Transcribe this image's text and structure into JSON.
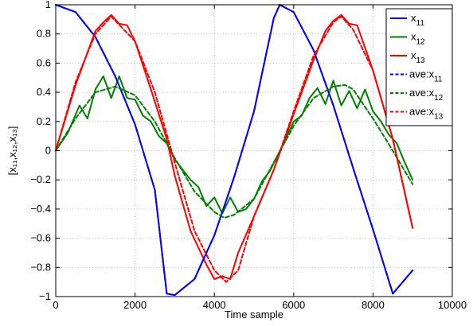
{
  "chart_data": {
    "type": "line",
    "xlabel": "Time sample",
    "ylabel": "[x₁₁,x₁₂,x₁₃]",
    "xlim": [
      0,
      10000
    ],
    "ylim": [
      -1,
      1
    ],
    "xticks": [
      0,
      2000,
      4000,
      6000,
      8000,
      10000
    ],
    "xtick_labels": [
      "0",
      "2000",
      "4000",
      "6000",
      "8000",
      "10000"
    ],
    "yticks": [
      -1,
      -0.8,
      -0.6,
      -0.4,
      -0.2,
      0,
      0.2,
      0.4,
      0.6,
      0.8,
      1
    ],
    "ytick_labels": [
      "−1",
      "−0.8",
      "−0.6",
      "−0.4",
      "−0.2",
      "0",
      "0.2",
      "0.4",
      "0.6",
      "0.8",
      "1"
    ],
    "grid": true,
    "legend_position": "top-right",
    "series": [
      {
        "name": "x11",
        "label_base": "x",
        "label_sub": "11",
        "color": "#0000ff",
        "style": "solid",
        "x": [
          0,
          500,
          1000,
          1500,
          2000,
          2500,
          2800,
          3000,
          3500,
          4000,
          4500,
          5000,
          5500,
          5650,
          6000,
          6500,
          7000,
          7500,
          8000,
          8500,
          9000
        ],
        "y": [
          1.0,
          0.95,
          0.78,
          0.51,
          0.18,
          -0.27,
          -0.98,
          -0.99,
          -0.88,
          -0.58,
          -0.18,
          0.27,
          0.91,
          1.0,
          0.95,
          0.69,
          0.31,
          -0.12,
          -0.54,
          -0.98,
          -0.82
        ]
      },
      {
        "name": "x12",
        "label_base": "x",
        "label_sub": "12",
        "color": "#008000",
        "style": "solid",
        "x": [
          0,
          300,
          600,
          800,
          1000,
          1200,
          1400,
          1600,
          1800,
          2000,
          2200,
          2400,
          2600,
          2800,
          3000,
          3200,
          3400,
          3600,
          3800,
          4000,
          4200,
          4400,
          4600,
          4800,
          5000,
          5200,
          5400,
          5600,
          5800,
          6000,
          6200,
          6400,
          6600,
          6800,
          7000,
          7200,
          7400,
          7600,
          7800,
          8000,
          8200,
          8400,
          8600,
          8800,
          9000
        ],
        "y": [
          0.0,
          0.12,
          0.31,
          0.22,
          0.42,
          0.51,
          0.36,
          0.51,
          0.36,
          0.35,
          0.24,
          0.2,
          0.1,
          0.05,
          -0.06,
          -0.13,
          -0.2,
          -0.25,
          -0.38,
          -0.32,
          -0.43,
          -0.32,
          -0.42,
          -0.4,
          -0.33,
          -0.21,
          -0.14,
          -0.03,
          0.08,
          0.2,
          0.24,
          0.36,
          0.43,
          0.32,
          0.48,
          0.31,
          0.41,
          0.29,
          0.42,
          0.27,
          0.2,
          0.11,
          0.05,
          -0.08,
          -0.2
        ]
      },
      {
        "name": "x13",
        "label_base": "x",
        "label_sub": "13",
        "color": "#ff0000",
        "style": "solid",
        "x": [
          0,
          500,
          1000,
          1200,
          1400,
          1600,
          1800,
          2000,
          2400,
          2800,
          3000,
          3400,
          3800,
          4000,
          4200,
          4400,
          4600,
          5000,
          5500,
          6000,
          6500,
          6800,
          7000,
          7200,
          7400,
          7600,
          8000,
          8500,
          9000
        ],
        "y": [
          0.0,
          0.45,
          0.82,
          0.88,
          0.93,
          0.87,
          0.86,
          0.75,
          0.42,
          0.08,
          -0.17,
          -0.55,
          -0.78,
          -0.88,
          -0.86,
          -0.88,
          -0.7,
          -0.45,
          -0.13,
          0.25,
          0.62,
          0.82,
          0.89,
          0.93,
          0.87,
          0.86,
          0.55,
          0.08,
          -0.53
        ]
      },
      {
        "name": "ave:x11",
        "label_base": "ave:x",
        "label_sub": "11",
        "color": "#0000ff",
        "style": "dashed",
        "x": [
          0,
          500,
          1000,
          1500,
          2000,
          2500,
          2800,
          3000,
          3500,
          4000,
          4500,
          5000,
          5500,
          5650,
          6000,
          6500,
          7000,
          7500,
          8000,
          8500,
          9000
        ],
        "y": [
          1.0,
          0.95,
          0.78,
          0.51,
          0.18,
          -0.27,
          -0.98,
          -0.99,
          -0.88,
          -0.58,
          -0.18,
          0.27,
          0.91,
          1.0,
          0.95,
          0.69,
          0.31,
          -0.12,
          -0.54,
          -0.98,
          -0.82
        ]
      },
      {
        "name": "ave:x12",
        "label_base": "ave:x",
        "label_sub": "12",
        "color": "#008000",
        "style": "dashed",
        "x": [
          0,
          500,
          1000,
          1500,
          2000,
          2500,
          3000,
          3500,
          4000,
          4250,
          4500,
          5000,
          5500,
          6000,
          6500,
          7000,
          7300,
          7500,
          8000,
          8500,
          9000
        ],
        "y": [
          0.0,
          0.22,
          0.4,
          0.44,
          0.38,
          0.2,
          -0.05,
          -0.28,
          -0.42,
          -0.46,
          -0.44,
          -0.33,
          -0.08,
          0.17,
          0.36,
          0.44,
          0.45,
          0.42,
          0.22,
          0.0,
          -0.23
        ]
      },
      {
        "name": "ave:x13",
        "label_base": "ave:x",
        "label_sub": "13",
        "color": "#ff0000",
        "style": "dashed",
        "x": [
          0,
          500,
          1000,
          1400,
          2000,
          2500,
          3000,
          3500,
          4000,
          4300,
          4600,
          5000,
          5500,
          6000,
          6500,
          7000,
          7200,
          7500,
          8000,
          8500,
          9000
        ],
        "y": [
          0.0,
          0.47,
          0.8,
          0.92,
          0.75,
          0.4,
          -0.08,
          -0.55,
          -0.82,
          -0.9,
          -0.82,
          -0.45,
          -0.13,
          0.27,
          0.65,
          0.88,
          0.92,
          0.83,
          0.55,
          0.08,
          -0.53
        ]
      }
    ]
  }
}
